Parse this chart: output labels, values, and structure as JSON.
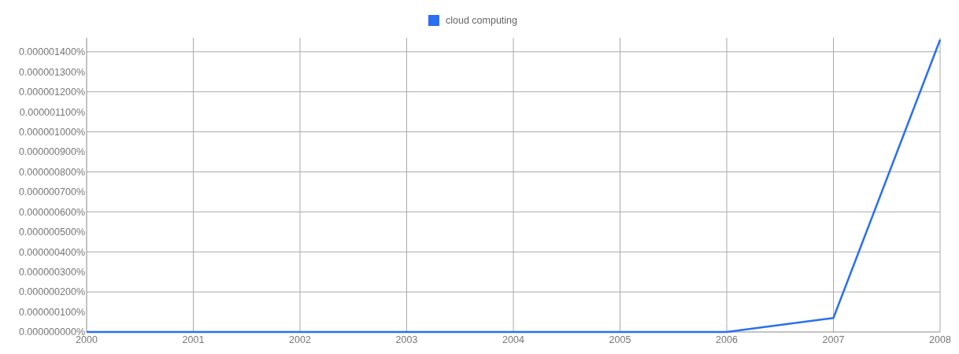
{
  "chart_data": {
    "type": "line",
    "x": [
      2000,
      2001,
      2002,
      2003,
      2004,
      2005,
      2006,
      2007,
      2008
    ],
    "series": [
      {
        "name": "cloud computing",
        "color": "#2a6ff0",
        "values": [
          0,
          0,
          0,
          0,
          0,
          0,
          0,
          7e-08,
          1.46e-06
        ]
      }
    ],
    "xlim": [
      2000,
      2008
    ],
    "xticks": [
      2000,
      2001,
      2002,
      2003,
      2004,
      2005,
      2006,
      2007,
      2008
    ],
    "ylim": [
      0,
      1.47e-06
    ],
    "yticks": [
      {
        "value": 0,
        "label": "0.000000000%"
      },
      {
        "value": 1e-07,
        "label": "0.000000100%"
      },
      {
        "value": 2e-07,
        "label": "0.000000200%"
      },
      {
        "value": 3e-07,
        "label": "0.000000300%"
      },
      {
        "value": 4e-07,
        "label": "0.000000400%"
      },
      {
        "value": 5e-07,
        "label": "0.000000500%"
      },
      {
        "value": 6e-07,
        "label": "0.000000600%"
      },
      {
        "value": 7e-07,
        "label": "0.000000700%"
      },
      {
        "value": 8e-07,
        "label": "0.000000800%"
      },
      {
        "value": 9e-07,
        "label": "0.000000900%"
      },
      {
        "value": 1e-06,
        "label": "0.000001000%"
      },
      {
        "value": 1.1e-06,
        "label": "0.000001100%"
      },
      {
        "value": 1.2e-06,
        "label": "0.000001200%"
      },
      {
        "value": 1.3e-06,
        "label": "0.000001300%"
      },
      {
        "value": 1.4e-06,
        "label": "0.000001400%"
      }
    ],
    "grid": true,
    "legend": "top",
    "marker": "none",
    "line_style": "solid"
  }
}
